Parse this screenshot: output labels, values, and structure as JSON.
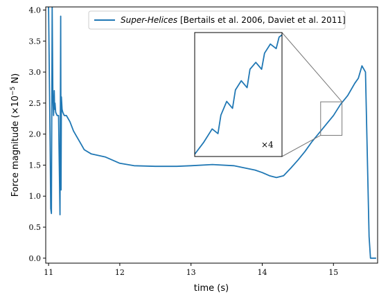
{
  "chart_data": {
    "type": "line",
    "xlabel": "time (s)",
    "ylabel_text": "Force magnitude (×10",
    "ylabel_exp": "−5",
    "ylabel_unit": " N)",
    "xlim": [
      10.96,
      15.62
    ],
    "ylim": [
      -0.08,
      4.05
    ],
    "x_ticks": [
      {
        "value": 11,
        "label": "11"
      },
      {
        "value": 12,
        "label": "12"
      },
      {
        "value": 13,
        "label": "13"
      },
      {
        "value": 14,
        "label": "14"
      },
      {
        "value": 15,
        "label": "15"
      }
    ],
    "y_ticks": [
      {
        "value": 0.0,
        "label": "0.0"
      },
      {
        "value": 0.5,
        "label": "0.5"
      },
      {
        "value": 1.0,
        "label": "1.0"
      },
      {
        "value": 1.5,
        "label": "1.5"
      },
      {
        "value": 2.0,
        "label": "2.0"
      },
      {
        "value": 2.5,
        "label": "2.5"
      },
      {
        "value": 3.0,
        "label": "3.0"
      },
      {
        "value": 3.5,
        "label": "3.5"
      },
      {
        "value": 4.0,
        "label": "4.0"
      }
    ],
    "grid": false,
    "legend_placement": "top-center",
    "color": "#1f77b4",
    "series": [
      {
        "name_italic": "Super-Helices",
        "name_rest": " [Bertails et al. 2006, Daviet et al. 2011]",
        "x": [
          11.0,
          11.02,
          11.03,
          11.04,
          11.05,
          11.06,
          11.07,
          11.08,
          11.085,
          11.09,
          11.1,
          11.12,
          11.14,
          11.16,
          11.17,
          11.175,
          11.18,
          11.19,
          11.2,
          11.22,
          11.25,
          11.3,
          11.35,
          11.4,
          11.45,
          11.5,
          11.6,
          11.8,
          12.0,
          12.2,
          12.5,
          12.8,
          13.0,
          13.3,
          13.6,
          13.9,
          14.0,
          14.1,
          14.2,
          14.3,
          14.4,
          14.5,
          14.6,
          14.7,
          14.8,
          14.9,
          15.0,
          15.1,
          15.2,
          15.3,
          15.35,
          15.4,
          15.45,
          15.5,
          15.52,
          15.55,
          15.6
        ],
        "y": [
          4.05,
          2.0,
          0.8,
          0.72,
          4.05,
          2.6,
          2.3,
          2.7,
          2.4,
          2.5,
          2.35,
          2.3,
          2.3,
          0.7,
          3.9,
          1.1,
          2.6,
          2.4,
          2.35,
          2.3,
          2.3,
          2.2,
          2.05,
          1.95,
          1.85,
          1.75,
          1.68,
          1.63,
          1.53,
          1.49,
          1.48,
          1.48,
          1.49,
          1.51,
          1.49,
          1.42,
          1.38,
          1.33,
          1.3,
          1.33,
          1.45,
          1.58,
          1.72,
          1.88,
          2.02,
          2.16,
          2.3,
          2.48,
          2.62,
          2.82,
          2.9,
          3.1,
          3.0,
          0.35,
          0.0,
          0.0,
          0.0
        ]
      }
    ],
    "inset": {
      "x_range": [
        14.82,
        15.12
      ],
      "y_range": [
        1.98,
        2.52
      ],
      "label": "×4",
      "x": [
        14.82,
        14.85,
        14.88,
        14.9,
        14.91,
        14.93,
        14.95,
        14.96,
        14.98,
        15.0,
        15.01,
        15.03,
        15.05,
        15.06,
        15.08,
        15.1,
        15.11,
        15.12
      ],
      "y": [
        1.99,
        2.04,
        2.1,
        2.08,
        2.16,
        2.22,
        2.19,
        2.27,
        2.31,
        2.28,
        2.36,
        2.39,
        2.36,
        2.43,
        2.47,
        2.45,
        2.5,
        2.51
      ]
    }
  }
}
